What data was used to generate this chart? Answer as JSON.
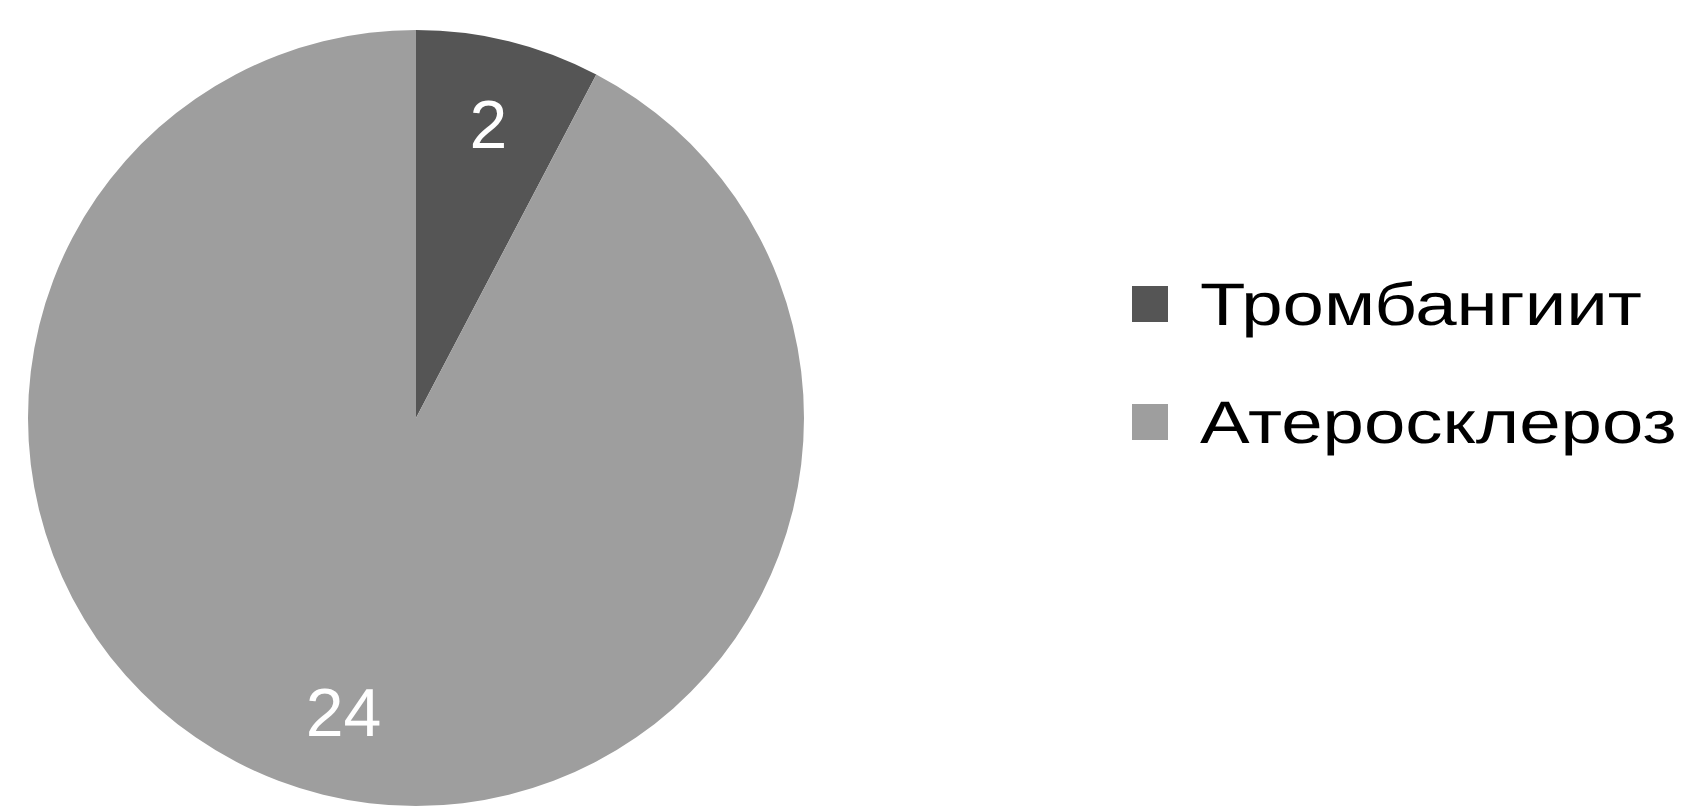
{
  "chart_data": {
    "type": "pie",
    "categories": [
      "Тромбангиит",
      "Атеросклероз"
    ],
    "values": [
      2,
      24
    ],
    "colors": [
      "#555555",
      "#9e9e9e"
    ],
    "data_labels": true,
    "legend": "right"
  }
}
